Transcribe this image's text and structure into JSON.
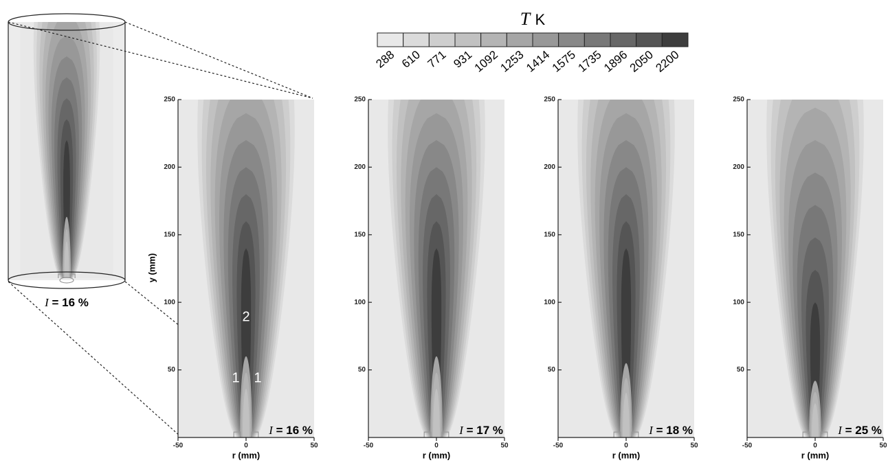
{
  "chart_data": {
    "type": "contour",
    "colorbar": {
      "title_symbol": "T",
      "title_unit": "K",
      "levels": [
        288,
        610,
        771,
        931,
        1092,
        1253,
        1414,
        1575,
        1735,
        1896,
        2050,
        2200
      ],
      "colors": [
        "#e8e8e8",
        "#dbdbdb",
        "#cecece",
        "#c1c1c1",
        "#b4b4b4",
        "#a6a6a6",
        "#989898",
        "#888888",
        "#787878",
        "#676767",
        "#555555",
        "#3d3d3d"
      ]
    },
    "xlabel": "r (mm)",
    "ylabel": "y (mm)",
    "xlim": [
      -50,
      50
    ],
    "ylim": [
      0,
      250
    ],
    "xticks": [
      -50,
      0,
      50
    ],
    "yticks": [
      50,
      100,
      150,
      200,
      250
    ],
    "panels": [
      {
        "symbol": "I",
        "text": "= 16 %"
      },
      {
        "symbol": "I",
        "text": "= 17 %"
      },
      {
        "symbol": "I",
        "text": "= 18 %"
      },
      {
        "symbol": "I",
        "text": "= 25 %"
      }
    ],
    "inset": {
      "symbol": "I",
      "text": "= 16 %"
    },
    "annotations": [
      "1",
      "1",
      "2"
    ]
  }
}
